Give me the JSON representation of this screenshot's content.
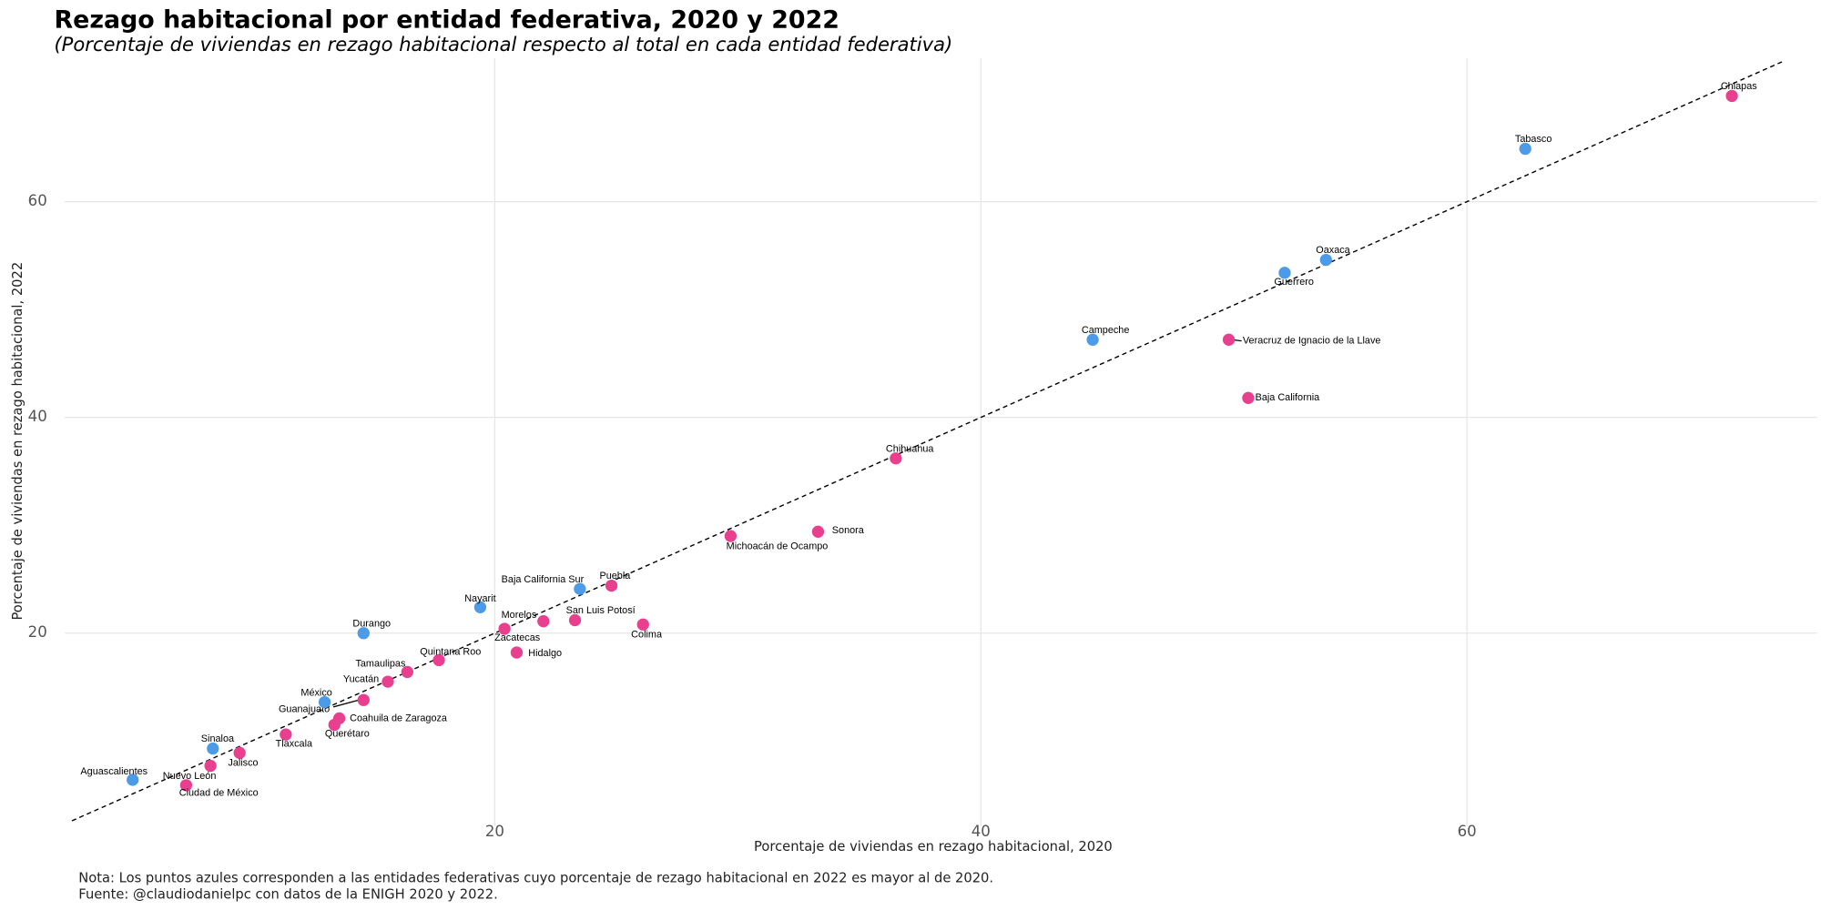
{
  "chart_data": {
    "type": "scatter",
    "title": "Rezago habitacional por entidad federativa, 2020 y 2022",
    "subtitle": "(Porcentaje de viviendas en rezago habitacional respecto al total en cada entidad federativa)",
    "x_label": "Porcentaje de viviendas en rezago habitacional, 2020",
    "y_label": "Porcentaje de viviendas en rezago habitacional, 2022",
    "notes": [
      "Nota: Los puntos azules corresponden a las entidades federativas cuyo porcentaje de rezago habitacional en 2022 es mayor al de 2020.",
      "Fuente: @claudiodanielpc con datos de la ENIGH 2020 y 2022."
    ],
    "point_labels": [
      "Chiapas",
      "Tabasco",
      "Oaxaca",
      "Guerrero",
      "Campeche",
      "Veracruz de Ignacio de la Llave",
      "Baja California",
      "Chihuahua",
      "Michoacán de Ocampo",
      "Sonora",
      "Puebla",
      "Baja California Sur",
      "San Luis Potosí",
      "Colima",
      "Morelos",
      "Zacatecas",
      "Hidalgo",
      "Nayarit",
      "Durango",
      "Quintana Roo",
      "Tamaulipas",
      "Yucatán",
      "Guanajuato",
      "México",
      "Coahuila de Zaragoza",
      "Querétaro",
      "Tlaxcala",
      "Jalisco",
      "Sinaloa",
      "Nuevo León",
      "Ciudad de México",
      "Aguascalientes"
    ],
    "x": [
      70.9,
      62.4,
      54.2,
      52.5,
      44.6,
      50.2,
      51.0,
      36.5,
      29.7,
      33.3,
      24.8,
      23.5,
      23.3,
      26.1,
      22.0,
      20.4,
      20.9,
      19.4,
      14.6,
      17.7,
      16.4,
      15.6,
      14.6,
      13.0,
      13.6,
      13.4,
      11.4,
      9.5,
      8.4,
      8.3,
      7.3,
      5.1
    ],
    "y": [
      69.8,
      64.9,
      54.6,
      53.4,
      47.2,
      47.2,
      41.8,
      36.2,
      29.0,
      29.4,
      24.4,
      24.1,
      21.2,
      20.8,
      21.1,
      20.4,
      18.2,
      22.4,
      20.0,
      17.5,
      16.4,
      15.5,
      13.8,
      13.6,
      12.1,
      11.5,
      10.6,
      8.9,
      9.3,
      7.7,
      5.9,
      6.4
    ],
    "point_colors": [
      "#e8408f",
      "#4c9be8",
      "#4c9be8",
      "#4c9be8",
      "#4c9be8",
      "#e8408f",
      "#e8408f",
      "#e8408f",
      "#e8408f",
      "#e8408f",
      "#e8408f",
      "#4c9be8",
      "#e8408f",
      "#e8408f",
      "#e8408f",
      "#e8408f",
      "#e8408f",
      "#4c9be8",
      "#4c9be8",
      "#e8408f",
      "#e8408f",
      "#e8408f",
      "#e8408f",
      "#4c9be8",
      "#e8408f",
      "#e8408f",
      "#e8408f",
      "#e8408f",
      "#4c9be8",
      "#e8408f",
      "#e8408f",
      "#4c9be8"
    ],
    "xlim": [
      2.3,
      74.4
    ],
    "ylim": [
      2.1,
      73.3
    ],
    "xticks": [
      20,
      40,
      60
    ],
    "yticks": [
      20,
      40,
      60
    ],
    "grid": true,
    "identity_line": true
  }
}
